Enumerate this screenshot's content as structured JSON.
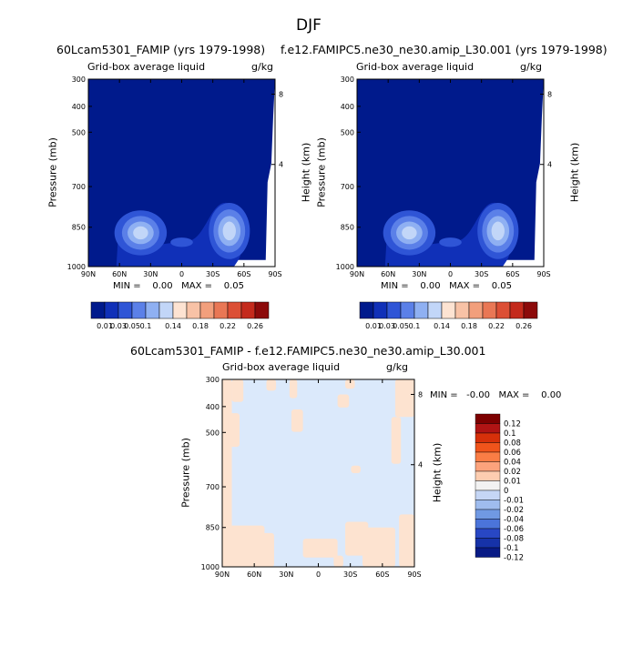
{
  "figure": {
    "season": "DJF",
    "panel1": {
      "title": "60Lcam5301_FAMIP (yrs 1979-1998)",
      "subtitle_left": "Grid-box average liquid",
      "subtitle_right": "g/kg",
      "ylabel": "Pressure (mb)",
      "ylabel_right": "Height (km)",
      "stats": "MIN =    0.00   MAX =    0.05"
    },
    "panel2": {
      "title": "f.e12.FAMIPC5.ne30_ne30.amip_L30.001 (yrs 1979-1998)",
      "subtitle_left": "Grid-box average liquid",
      "subtitle_right": "g/kg",
      "ylabel": "Pressure (mb)",
      "ylabel_right": "Height (km)",
      "stats": "MIN =    0.00   MAX =    0.05"
    },
    "panel3": {
      "title": "60Lcam5301_FAMIP - f.e12.FAMIPC5.ne30_ne30.amip_L30.001",
      "subtitle_left": "Grid-box average liquid",
      "subtitle_right": "g/kg",
      "ylabel": "Pressure (mb)",
      "ylabel_right": "Height (km)",
      "stats": "MIN =   -0.00   MAX =    0.00"
    }
  },
  "chart_data": [
    {
      "type": "heatmap",
      "title": "60Lcam5301_FAMIP (yrs 1979-1998)",
      "x_ticks": [
        "90N",
        "60N",
        "30N",
        "0",
        "30S",
        "60S",
        "90S"
      ],
      "y_ticks": [
        "300",
        "400",
        "500",
        "700",
        "850",
        "1000"
      ],
      "y_ticks_right": [
        "8",
        "4"
      ],
      "ylabel": "Pressure (mb)",
      "ylabel_right": "Height (km)",
      "units": "g/kg",
      "min": 0.0,
      "max": 0.05,
      "colorbar_levels": [
        "0.01",
        "0.03",
        "0.05",
        "0.1",
        "0.14",
        "0.18",
        "0.22",
        "0.26"
      ],
      "features": [
        {
          "lat": 40,
          "pressure": 850,
          "value": 0.05
        },
        {
          "lat": -50,
          "pressure": 850,
          "value": 0.05
        }
      ]
    },
    {
      "type": "heatmap",
      "title": "f.e12.FAMIPC5.ne30_ne30.amip_L30.001 (yrs 1979-1998)",
      "x_ticks": [
        "90N",
        "60N",
        "30N",
        "0",
        "30S",
        "60S",
        "90S"
      ],
      "y_ticks": [
        "300",
        "400",
        "500",
        "700",
        "850",
        "1000"
      ],
      "y_ticks_right": [
        "8",
        "4"
      ],
      "ylabel": "Pressure (mb)",
      "ylabel_right": "Height (km)",
      "units": "g/kg",
      "min": 0.0,
      "max": 0.05,
      "colorbar_levels": [
        "0.01",
        "0.03",
        "0.05",
        "0.1",
        "0.14",
        "0.18",
        "0.22",
        "0.26"
      ],
      "features": [
        {
          "lat": 40,
          "pressure": 850,
          "value": 0.05
        },
        {
          "lat": -50,
          "pressure": 850,
          "value": 0.05
        }
      ]
    },
    {
      "type": "heatmap",
      "title": "60Lcam5301_FAMIP - f.e12.FAMIPC5.ne30_ne30.amip_L30.001",
      "x_ticks": [
        "90N",
        "60N",
        "30N",
        "0",
        "30S",
        "60S",
        "90S"
      ],
      "y_ticks": [
        "300",
        "400",
        "500",
        "700",
        "850",
        "1000"
      ],
      "y_ticks_right": [
        "8",
        "4"
      ],
      "ylabel": "Pressure (mb)",
      "ylabel_right": "Height (km)",
      "units": "g/kg",
      "min": -0.0,
      "max": 0.0,
      "colorbar_levels": [
        "0.12",
        "0.1",
        "0.08",
        "0.06",
        "0.04",
        "0.02",
        "0.01",
        "0",
        "-0.01",
        "-0.02",
        "-0.04",
        "-0.06",
        "-0.08",
        "-0.1",
        "-0.12"
      ]
    }
  ],
  "colors": {
    "abs_scale": [
      "#001a8c",
      "#1030b8",
      "#2f55d6",
      "#5b80e8",
      "#8fb0f2",
      "#c2d6f8",
      "#fde3d2",
      "#f8c2a6",
      "#f29f7c",
      "#e97755",
      "#dc4f35",
      "#c42a1c",
      "#8c0a0a"
    ],
    "diff_scale": [
      "#7d0000",
      "#b01414",
      "#d6300a",
      "#f0541b",
      "#fa7d45",
      "#fca37c",
      "#fdcdb0",
      "#f2f2f2",
      "#c5d6f5",
      "#9fbcee",
      "#7099e3",
      "#4b74da",
      "#2847c4",
      "#1632a8",
      "#081a85"
    ],
    "dark_blue": "#001a8c",
    "light_blue": "#dbe9fb",
    "light_peach": "#fde3d0"
  }
}
